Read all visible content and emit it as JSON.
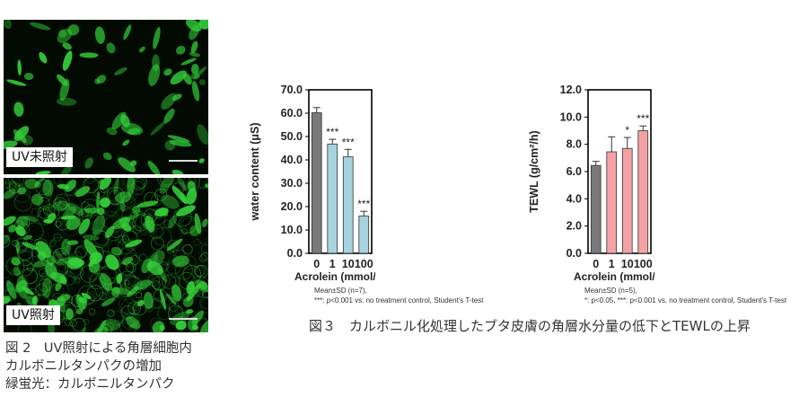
{
  "figure2": {
    "panels": [
      {
        "label": "UV未照射"
      },
      {
        "label": "UV照射"
      }
    ],
    "fluorescence_color": "#35d03a",
    "caption_lines": [
      "図 2　UV照射による角層細胞内",
      "カルボニルタンパクの増加",
      "緑蛍光：カルボニルタンパク"
    ]
  },
  "figure3": {
    "caption": "図３　カルボニル化処理したブタ皮膚の角層水分量の低下とTEWLの上昇"
  },
  "chart_data": [
    {
      "type": "bar",
      "categories": [
        "0",
        "1",
        "10",
        "100"
      ],
      "values": [
        60.2,
        46.8,
        41.3,
        16.0
      ],
      "errors": [
        2.2,
        2.0,
        3.2,
        2.0
      ],
      "significance": [
        "",
        "***",
        "***",
        "***"
      ],
      "colors": [
        "#7a7a7a",
        "#a7d3df",
        "#a7d3df",
        "#a7d3df"
      ],
      "ylabel": "water content (μS)",
      "xlabel": "Acrolein (mmol/L)",
      "ylim": [
        0,
        70
      ],
      "yticks": [
        "0.0",
        "10.0",
        "20.0",
        "30.0",
        "40.0",
        "50.0",
        "60.0",
        "70.0"
      ],
      "notes": [
        "Mean±SD (n=7),",
        "***: p<0.001 vs. no treatment control, Student's T-test"
      ]
    },
    {
      "type": "bar",
      "categories": [
        "0",
        "1",
        "10",
        "100"
      ],
      "values": [
        6.45,
        7.45,
        7.7,
        9.0
      ],
      "errors": [
        0.3,
        1.1,
        0.8,
        0.35
      ],
      "significance": [
        "",
        "",
        "*",
        "***"
      ],
      "colors": [
        "#7a7a7a",
        "#f4a2a4",
        "#f4a2a4",
        "#f4a2a4"
      ],
      "ylabel": "TEWL (g/cm²/h)",
      "xlabel": "Acrolein (mmol/L)",
      "ylim": [
        0,
        12
      ],
      "yticks": [
        "0.0",
        "2.0",
        "4.0",
        "6.0",
        "8.0",
        "10.0",
        "12.0"
      ],
      "notes": [
        "Mean±SD (n=5),",
        "*: p<0.05, ***: p<0.001 vs. no treatment control, Student's T-test"
      ]
    }
  ]
}
